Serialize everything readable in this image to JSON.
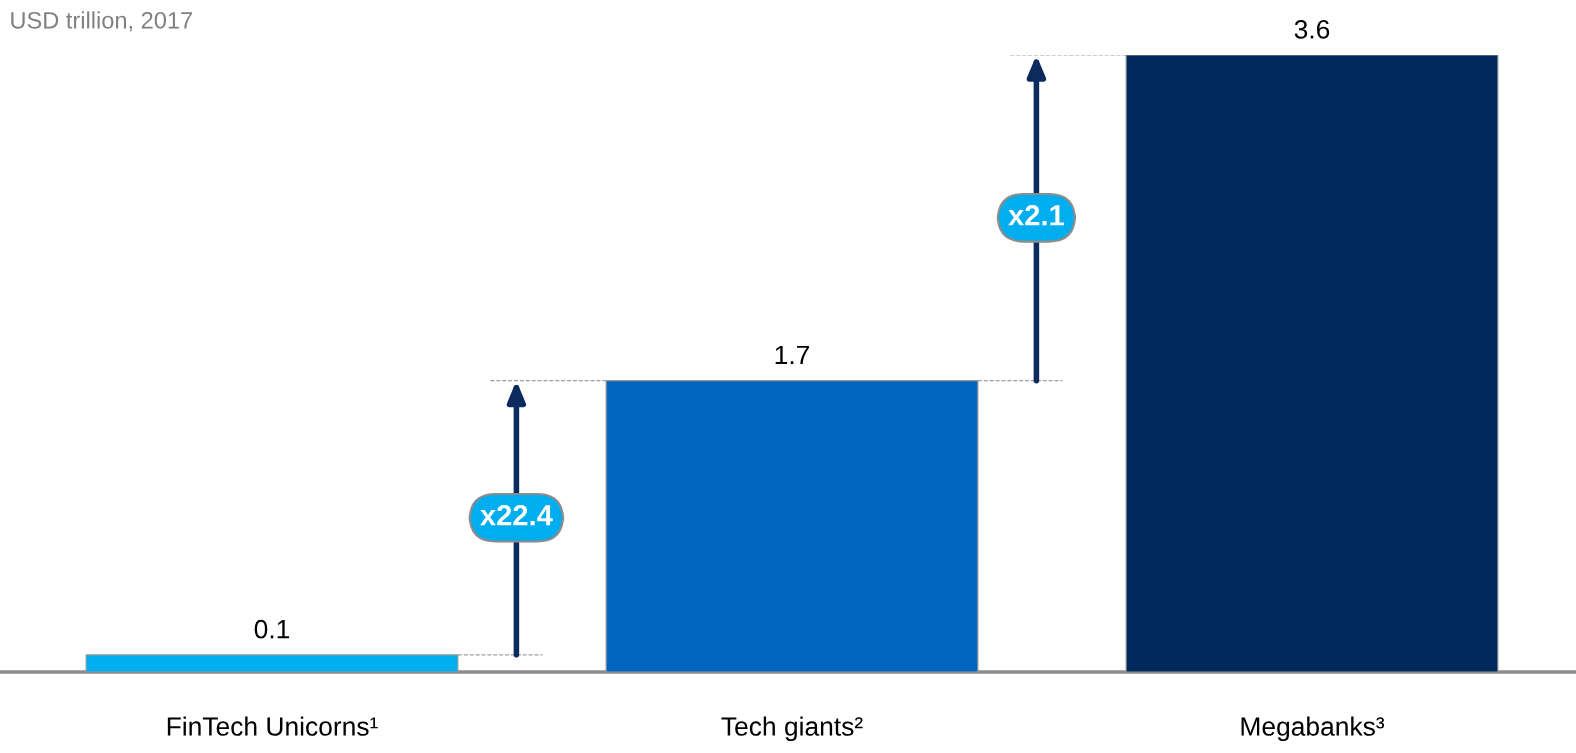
{
  "chart_data": {
    "type": "bar",
    "subtitle": "USD trillion, 2017",
    "categories": [
      "FinTech Unicorns¹",
      "Tech giants²",
      "Megabanks³"
    ],
    "values": [
      0.1,
      1.7,
      3.6
    ],
    "colors": [
      "#00aeef",
      "#0066bf",
      "#002a5c"
    ],
    "data_labels": true,
    "annotations": [
      "x22.4",
      "x2.1"
    ],
    "tick_labels": "x",
    "grid": false,
    "legend": false
  }
}
